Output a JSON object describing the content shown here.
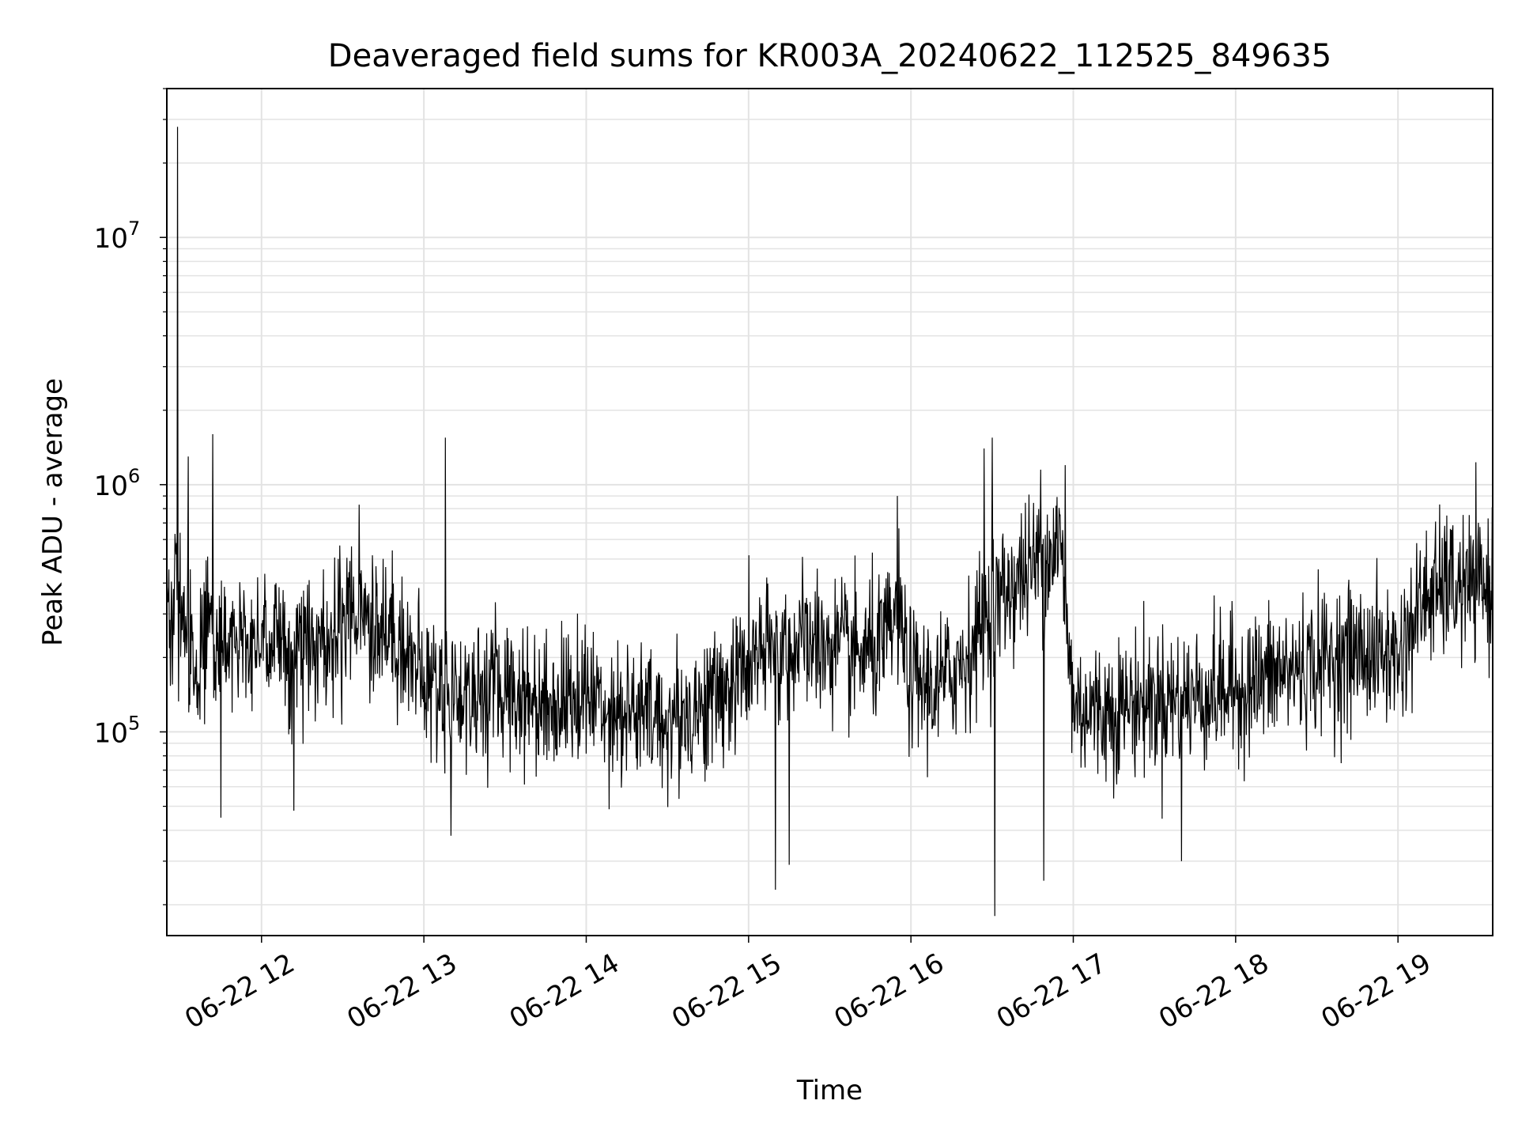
{
  "chart_data": {
    "type": "line",
    "title": "Deaveraged field sums for KR003A_20240622_112525_849635",
    "xlabel": "Time",
    "ylabel": "Peak ADU - average",
    "yscale": "log",
    "grid": true,
    "line_color": "#000000",
    "xlim": [
      "2024-06-22 11:25",
      "2024-06-22 19:35"
    ],
    "ylim": [
      15000,
      40000000
    ],
    "x_ticks": [
      {
        "value": "2024-06-22 12:00",
        "label": "06-22 12"
      },
      {
        "value": "2024-06-22 13:00",
        "label": "06-22 13"
      },
      {
        "value": "2024-06-22 14:00",
        "label": "06-22 14"
      },
      {
        "value": "2024-06-22 15:00",
        "label": "06-22 15"
      },
      {
        "value": "2024-06-22 16:00",
        "label": "06-22 16"
      },
      {
        "value": "2024-06-22 17:00",
        "label": "06-22 17"
      },
      {
        "value": "2024-06-22 18:00",
        "label": "06-22 18"
      },
      {
        "value": "2024-06-22 19:00",
        "label": "06-22 19"
      }
    ],
    "y_ticks": [
      {
        "value": 100000,
        "base": "10",
        "exp": "5"
      },
      {
        "value": 1000000,
        "base": "10",
        "exp": "6"
      },
      {
        "value": 10000000,
        "base": "10",
        "exp": "7"
      }
    ],
    "series": [
      {
        "x": [
          "2024-06-22 11:25",
          "2024-06-22 11:30",
          "2024-06-22 11:35",
          "2024-06-22 11:40",
          "2024-06-22 11:45",
          "2024-06-22 11:50",
          "2024-06-22 11:55",
          "2024-06-22 12:00",
          "2024-06-22 12:10",
          "2024-06-22 12:20",
          "2024-06-22 12:30",
          "2024-06-22 12:35",
          "2024-06-22 12:40",
          "2024-06-22 12:50",
          "2024-06-22 13:00",
          "2024-06-22 13:05",
          "2024-06-22 13:15",
          "2024-06-22 13:30",
          "2024-06-22 13:45",
          "2024-06-22 14:00",
          "2024-06-22 14:15",
          "2024-06-22 14:30",
          "2024-06-22 14:45",
          "2024-06-22 14:55",
          "2024-06-22 15:00",
          "2024-06-22 15:10",
          "2024-06-22 15:20",
          "2024-06-22 15:30",
          "2024-06-22 15:40",
          "2024-06-22 15:50",
          "2024-06-22 15:55",
          "2024-06-22 16:00",
          "2024-06-22 16:10",
          "2024-06-22 16:20",
          "2024-06-22 16:30",
          "2024-06-22 16:40",
          "2024-06-22 16:50",
          "2024-06-22 16:55",
          "2024-06-22 17:00",
          "2024-06-22 17:10",
          "2024-06-22 17:20",
          "2024-06-22 17:30",
          "2024-06-22 17:45",
          "2024-06-22 18:00",
          "2024-06-22 18:15",
          "2024-06-22 18:30",
          "2024-06-22 18:45",
          "2024-06-22 19:00",
          "2024-06-22 19:10",
          "2024-06-22 19:20",
          "2024-06-22 19:30"
        ],
        "values": [
          300000,
          350000,
          180000,
          260000,
          220000,
          250000,
          240000,
          260000,
          210000,
          230000,
          250000,
          300000,
          280000,
          250000,
          160000,
          150000,
          140000,
          150000,
          130000,
          140000,
          120000,
          110000,
          130000,
          160000,
          190000,
          210000,
          230000,
          220000,
          200000,
          220000,
          300000,
          160000,
          150000,
          200000,
          320000,
          420000,
          520000,
          600000,
          130000,
          120000,
          130000,
          135000,
          140000,
          150000,
          170000,
          190000,
          210000,
          200000,
          350000,
          380000,
          380000
        ]
      }
    ],
    "peaks": [
      {
        "x": "2024-06-22 11:29",
        "value": 28000000
      },
      {
        "x": "2024-06-22 11:33",
        "value": 1300000
      },
      {
        "x": "2024-06-22 11:42",
        "value": 1600000
      },
      {
        "x": "2024-06-22 12:36",
        "value": 830000
      },
      {
        "x": "2024-06-22 13:08",
        "value": 1550000
      },
      {
        "x": "2024-06-22 15:55",
        "value": 900000
      },
      {
        "x": "2024-06-22 16:27",
        "value": 1400000
      },
      {
        "x": "2024-06-22 16:30",
        "value": 1550000
      },
      {
        "x": "2024-06-22 16:48",
        "value": 1150000
      },
      {
        "x": "2024-06-22 16:57",
        "value": 1200000
      },
      {
        "x": "2024-06-22 19:18",
        "value": 750000
      }
    ],
    "troughs": [
      {
        "x": "2024-06-22 11:45",
        "value": 45000
      },
      {
        "x": "2024-06-22 12:12",
        "value": 48000
      },
      {
        "x": "2024-06-22 13:10",
        "value": 38000
      },
      {
        "x": "2024-06-22 15:10",
        "value": 23000
      },
      {
        "x": "2024-06-22 15:15",
        "value": 29000
      },
      {
        "x": "2024-06-22 16:31",
        "value": 18000
      },
      {
        "x": "2024-06-22 16:49",
        "value": 25000
      },
      {
        "x": "2024-06-22 17:40",
        "value": 30000
      }
    ]
  }
}
